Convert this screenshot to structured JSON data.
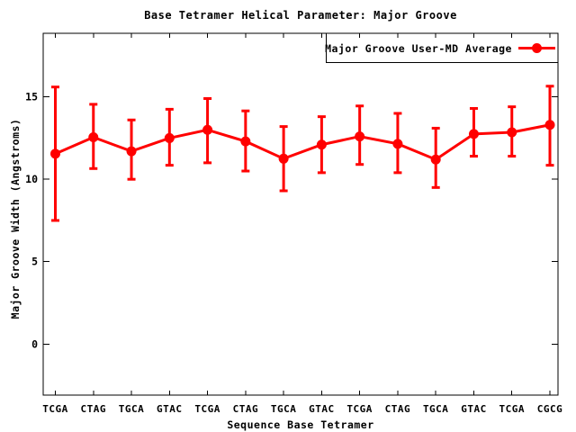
{
  "header": {
    "title": "Base Tetramer Helical Parameter: Major Groove"
  },
  "axes": {
    "x_label": "Sequence Base Tetramer",
    "y_label": "Major Groove Width (Angstroms)",
    "y_ticks": [
      "0",
      "5",
      "10",
      "15"
    ]
  },
  "legend": {
    "label": "Major Groove User-MD Average"
  },
  "colors": {
    "series": "#ff0000",
    "frame": "#000000",
    "background": "#ffffff"
  },
  "chart_data": {
    "type": "line",
    "title": "Base Tetramer Helical Parameter: Major Groove",
    "xlabel": "Sequence Base Tetramer",
    "ylabel": "Major Groove Width (Angstroms)",
    "categories": [
      "TCGA",
      "CTAG",
      "TGCA",
      "GTAC",
      "TCGA",
      "CTAG",
      "TGCA",
      "GTAC",
      "TCGA",
      "CTAG",
      "TGCA",
      "GTAC",
      "TCGA",
      "CGCG"
    ],
    "series": [
      {
        "name": "Major Groove User-MD Average",
        "marker": "filled-circle",
        "color": "#ff0000",
        "values": [
          11.55,
          12.55,
          11.7,
          12.5,
          13.0,
          12.3,
          11.25,
          12.1,
          12.6,
          12.15,
          11.2,
          12.75,
          12.85,
          13.3
        ],
        "error_high": [
          15.6,
          14.55,
          13.6,
          14.25,
          14.9,
          14.15,
          13.2,
          13.8,
          14.45,
          14.0,
          13.1,
          14.3,
          14.4,
          15.65
        ],
        "error_low": [
          7.5,
          10.65,
          10.0,
          10.85,
          11.0,
          10.5,
          9.3,
          10.4,
          10.9,
          10.4,
          9.5,
          11.4,
          11.4,
          10.85
        ]
      }
    ],
    "y_ticks": [
      0,
      5,
      10,
      15
    ],
    "ylim": [
      -3.1,
      18.86
    ],
    "grid": false,
    "legend_position": "top-right-inside-box",
    "tics": "inward-mirrored"
  }
}
